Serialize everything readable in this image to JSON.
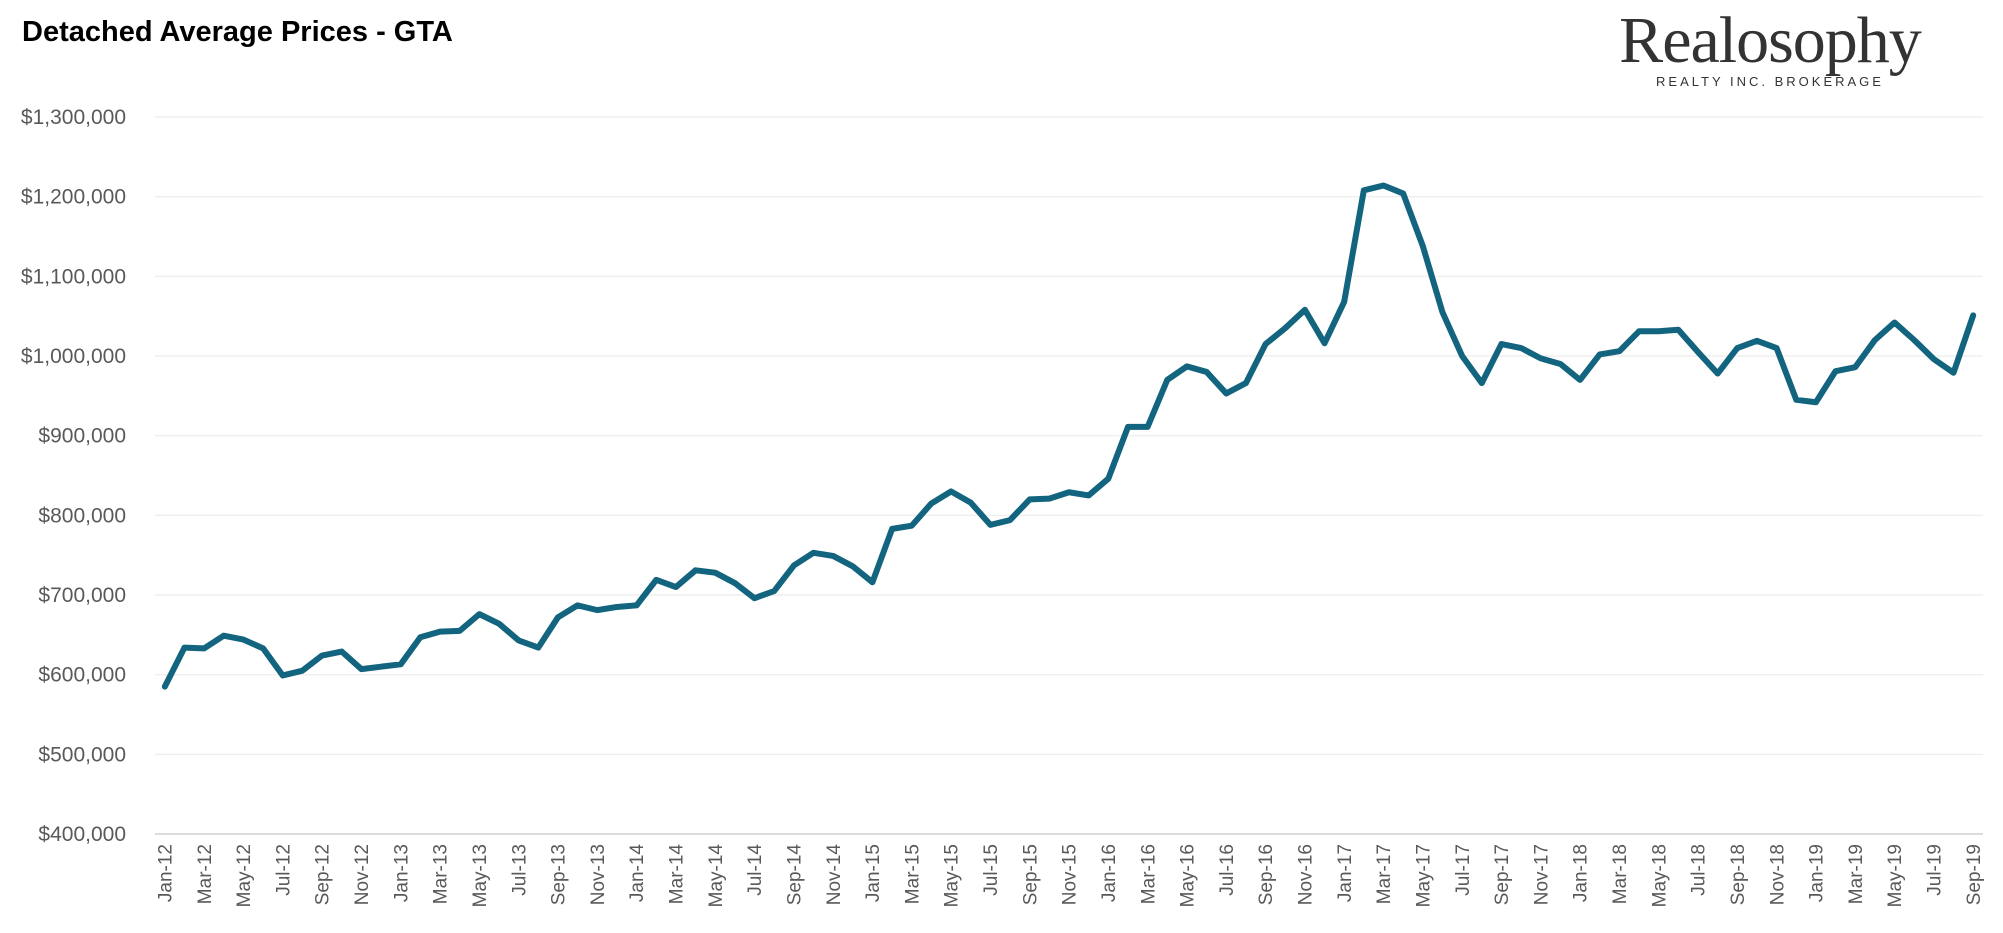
{
  "chart_data": {
    "type": "line",
    "title": "Detached Average Prices - GTA",
    "xlabel": "",
    "ylabel": "",
    "ylim": [
      400000,
      1300000
    ],
    "y_ticks": [
      400000,
      500000,
      600000,
      700000,
      800000,
      900000,
      1000000,
      1100000,
      1200000,
      1300000
    ],
    "y_tick_labels": [
      "$400,000",
      "$500,000",
      "$600,000",
      "$700,000",
      "$800,000",
      "$900,000",
      "$1,000,000",
      "$1,100,000",
      "$1,200,000",
      "$1,300,000"
    ],
    "grid": true,
    "legend": "none",
    "line_color": "#12647f",
    "x": [
      "Jan-12",
      "Feb-12",
      "Mar-12",
      "Apr-12",
      "May-12",
      "Jun-12",
      "Jul-12",
      "Aug-12",
      "Sep-12",
      "Oct-12",
      "Nov-12",
      "Dec-12",
      "Jan-13",
      "Feb-13",
      "Mar-13",
      "Apr-13",
      "May-13",
      "Jun-13",
      "Jul-13",
      "Aug-13",
      "Sep-13",
      "Oct-13",
      "Nov-13",
      "Dec-13",
      "Jan-14",
      "Feb-14",
      "Mar-14",
      "Apr-14",
      "May-14",
      "Jun-14",
      "Jul-14",
      "Aug-14",
      "Sep-14",
      "Oct-14",
      "Nov-14",
      "Dec-14",
      "Jan-15",
      "Feb-15",
      "Mar-15",
      "Apr-15",
      "May-15",
      "Jun-15",
      "Jul-15",
      "Aug-15",
      "Sep-15",
      "Oct-15",
      "Nov-15",
      "Dec-15",
      "Jan-16",
      "Feb-16",
      "Mar-16",
      "Apr-16",
      "May-16",
      "Jun-16",
      "Jul-16",
      "Aug-16",
      "Sep-16",
      "Oct-16",
      "Nov-16",
      "Dec-16",
      "Jan-17",
      "Feb-17",
      "Mar-17",
      "Apr-17",
      "May-17",
      "Jun-17",
      "Jul-17",
      "Aug-17",
      "Sep-17",
      "Oct-17",
      "Nov-17",
      "Dec-17",
      "Jan-18",
      "Feb-18",
      "Mar-18",
      "Apr-18",
      "May-18",
      "Jun-18",
      "Jul-18",
      "Aug-18",
      "Sep-18",
      "Oct-18",
      "Nov-18",
      "Dec-18",
      "Jan-19",
      "Feb-19",
      "Mar-19",
      "Apr-19",
      "May-19",
      "Jun-19",
      "Jul-19",
      "Aug-19",
      "Sep-19"
    ],
    "x_tick_labels": [
      "Jan-12",
      "Mar-12",
      "May-12",
      "Jul-12",
      "Sep-12",
      "Nov-12",
      "Jan-13",
      "Mar-13",
      "May-13",
      "Jul-13",
      "Sep-13",
      "Nov-13",
      "Jan-14",
      "Mar-14",
      "May-14",
      "Jul-14",
      "Sep-14",
      "Nov-14",
      "Jan-15",
      "Mar-15",
      "May-15",
      "Jul-15",
      "Sep-15",
      "Nov-15",
      "Jan-16",
      "Mar-16",
      "May-16",
      "Jul-16",
      "Sep-16",
      "Nov-16",
      "Jan-17",
      "Mar-17",
      "May-17",
      "Jul-17",
      "Sep-17",
      "Nov-17",
      "Jan-18",
      "Mar-18",
      "May-18",
      "Jul-18",
      "Sep-18",
      "Nov-18",
      "Jan-19",
      "Mar-19",
      "May-19",
      "Jul-19",
      "Sep-19"
    ],
    "series": [
      {
        "values": [
          585000,
          634000,
          633000,
          649000,
          644000,
          633000,
          599000,
          605000,
          624000,
          629000,
          607000,
          610000,
          613000,
          647000,
          654000,
          655000,
          676000,
          664000,
          643000,
          634000,
          672000,
          687000,
          681000,
          685000,
          687000,
          719000,
          710000,
          731000,
          728000,
          715000,
          696000,
          705000,
          737000,
          753000,
          749000,
          736000,
          716000,
          783000,
          787000,
          815000,
          830000,
          816000,
          788000,
          794000,
          820000,
          821000,
          829000,
          825000,
          846000,
          911000,
          911000,
          970000,
          987000,
          980000,
          953000,
          966000,
          1015000,
          1035000,
          1058000,
          1016000,
          1068000,
          1208000,
          1214000,
          1204000,
          1138000,
          1055000,
          1000000,
          966000,
          1015000,
          1010000,
          997000,
          990000,
          970000,
          1002000,
          1006000,
          1031000,
          1031000,
          1033000,
          1005000,
          978000,
          1010000,
          1019000,
          1010000,
          945000,
          942000,
          981000,
          986000,
          1020000,
          1042000,
          1020000,
          996000,
          979000,
          1051000
        ]
      }
    ]
  },
  "logo": {
    "name": "Realosophy",
    "tagline": "REALTY INC. BROKERAGE"
  }
}
